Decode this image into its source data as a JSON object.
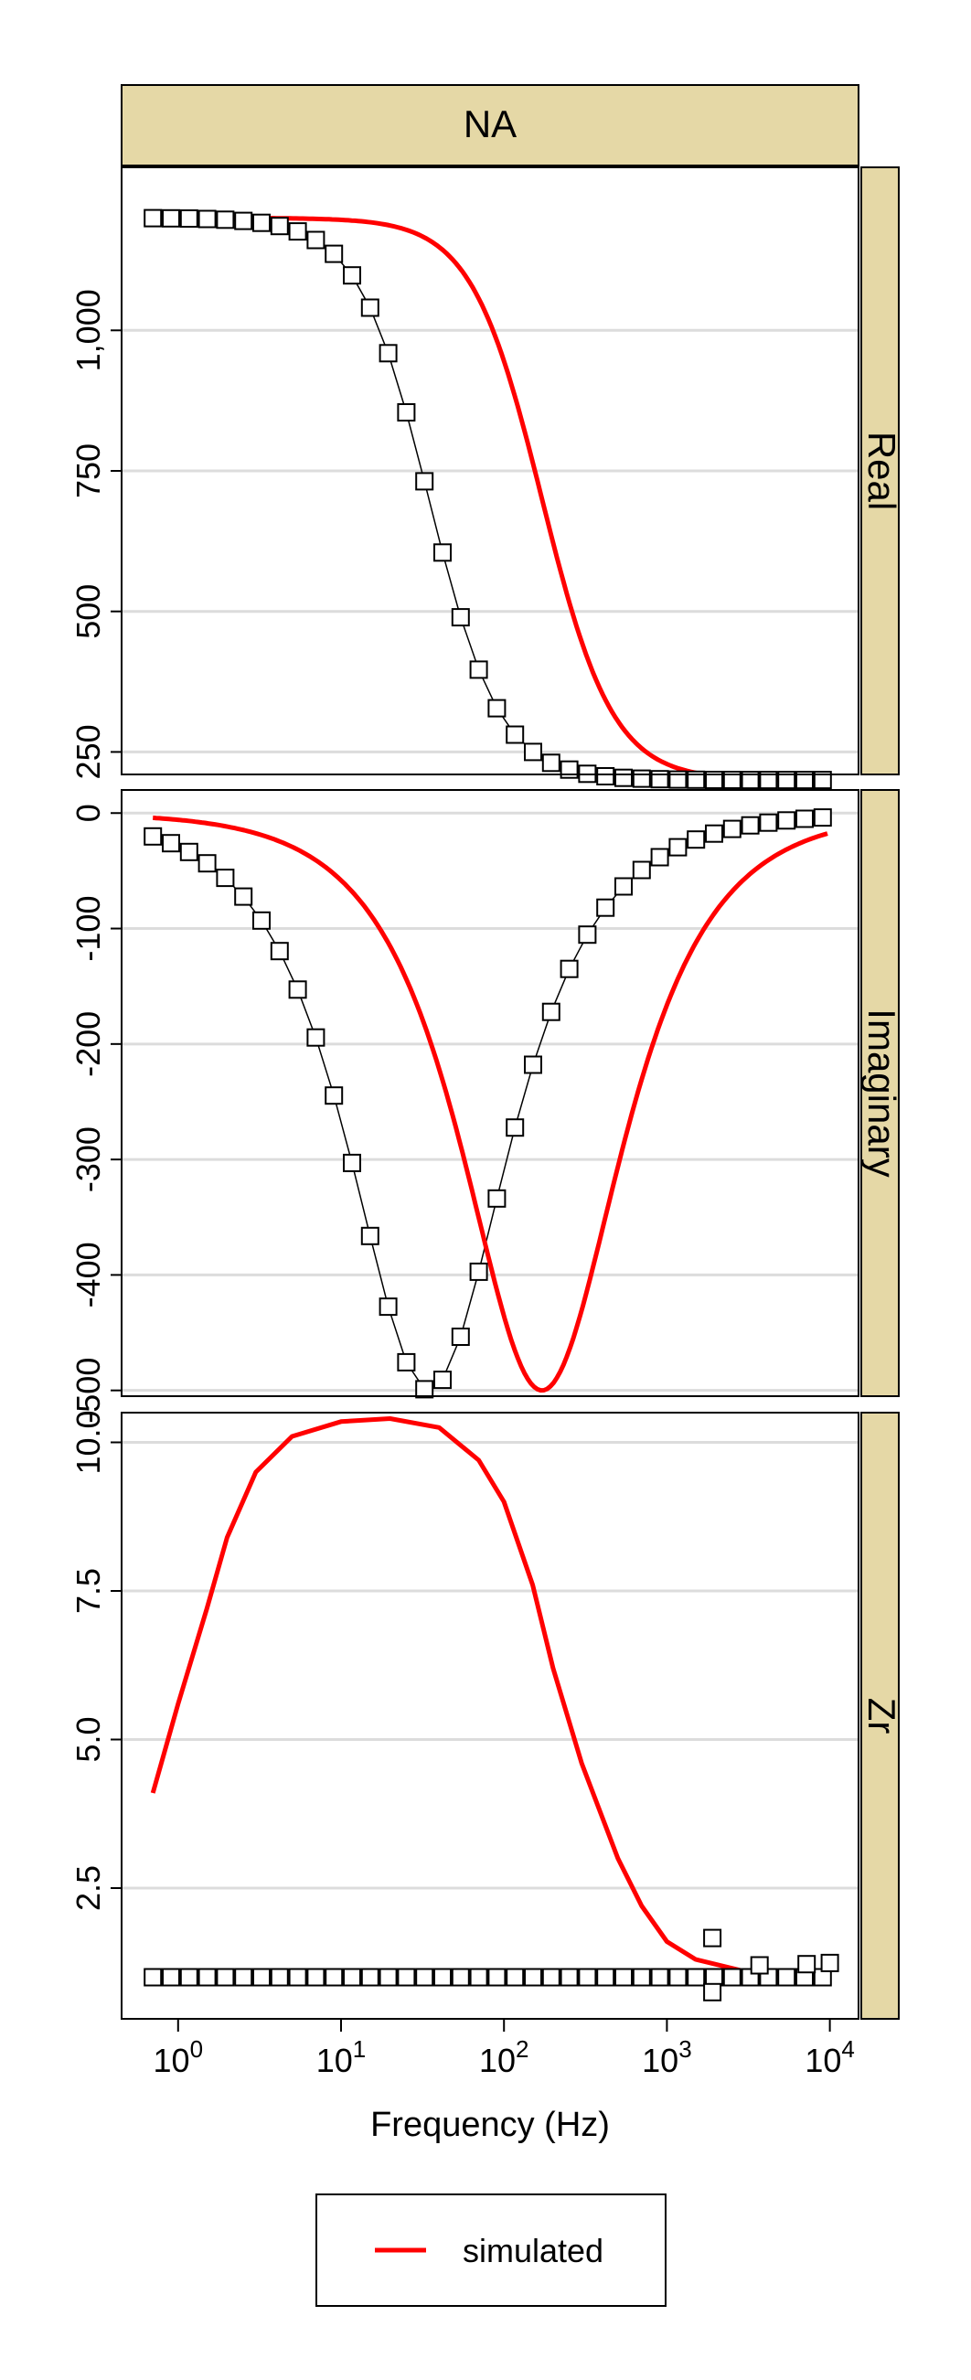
{
  "chart_data": {
    "type": "scatter",
    "strip_title": "NA",
    "xlabel": "Frequency (Hz)",
    "x_scale": "log",
    "xlim": [
      0.45,
      15000
    ],
    "x_ticks": [
      {
        "label": "10",
        "exp": "0",
        "value": 1
      },
      {
        "label": "10",
        "exp": "1",
        "value": 10
      },
      {
        "label": "10",
        "exp": "2",
        "value": 100
      },
      {
        "label": "10",
        "exp": "3",
        "value": 1000
      },
      {
        "label": "10",
        "exp": "4",
        "value": 10000
      }
    ],
    "strip_color": "#e5d8a6",
    "simulated_color": "#ff0000",
    "legend": {
      "position": "bottom",
      "entries": [
        {
          "label": "simulated",
          "color": "#ff0000"
        }
      ]
    },
    "panels": [
      {
        "label": "Real",
        "ylim": [
          210,
          1290
        ],
        "y_ticks": [
          {
            "label": "250",
            "value": 250
          },
          {
            "label": "500",
            "value": 500
          },
          {
            "label": "750",
            "value": 750
          },
          {
            "label": "1,000",
            "value": 1000
          }
        ],
        "observed": {
          "R0": 200,
          "dR": 1000,
          "tau": 0.0046
        },
        "simulated": {
          "R0": 200,
          "dR": 1000,
          "tau": 0.00093
        }
      },
      {
        "label": "Imaginary",
        "ylim": [
          -505,
          20
        ],
        "y_ticks": [
          {
            "label": "0",
            "value": 0
          },
          {
            "label": "-100",
            "value": -100
          },
          {
            "label": "-200",
            "value": -200
          },
          {
            "label": "-300",
            "value": -300
          },
          {
            "label": "-400",
            "value": -400
          },
          {
            "label": "-500",
            "value": -500
          }
        ],
        "observed": {
          "R0": 200,
          "dR": 1000,
          "tau": 0.0046
        },
        "simulated": {
          "R0": 200,
          "dR": 1000,
          "tau": 0.00093
        }
      },
      {
        "label": "Zr",
        "ylim": [
          0.3,
          10.5
        ],
        "y_ticks": [
          {
            "label": "2.5",
            "value": 2.5
          },
          {
            "label": "5.0",
            "value": 5.0
          },
          {
            "label": "7.5",
            "value": 7.5
          },
          {
            "label": "10.0",
            "value": 10.0
          }
        ],
        "observed": {
          "base": 1.0,
          "outliers": [
            {
              "x": 1900,
              "y": 1.66
            },
            {
              "x": 1900,
              "y": 0.75
            },
            {
              "x": 3700,
              "y": 1.2
            },
            {
              "x": 7200,
              "y": 1.22
            },
            {
              "x": 10000,
              "y": 1.24
            }
          ]
        },
        "simulated": {
          "points": [
            [
              0.7,
              4.1
            ],
            [
              1,
              5.6
            ],
            [
              1.5,
              7.2
            ],
            [
              2,
              8.4
            ],
            [
              3,
              9.5
            ],
            [
              5,
              10.1
            ],
            [
              10,
              10.35
            ],
            [
              20,
              10.4
            ],
            [
              40,
              10.25
            ],
            [
              70,
              9.7
            ],
            [
              100,
              9.0
            ],
            [
              150,
              7.6
            ],
            [
              200,
              6.2
            ],
            [
              300,
              4.6
            ],
            [
              500,
              3.0
            ],
            [
              700,
              2.2
            ],
            [
              1000,
              1.6
            ],
            [
              1500,
              1.3
            ],
            [
              3000,
              1.1
            ],
            [
              10000,
              1.0
            ]
          ]
        }
      }
    ]
  }
}
